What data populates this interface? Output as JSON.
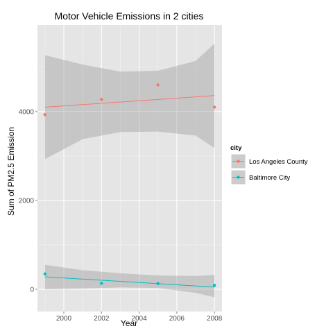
{
  "chart_data": {
    "type": "scatter",
    "title": "Motor Vehicle Emissions in 2 cities",
    "xlabel": "Year",
    "ylabel": "Sum of PM2.5 Emission",
    "x_ticks": [
      2000,
      2002,
      2004,
      2006,
      2008
    ],
    "y_ticks": [
      0,
      2000,
      4000
    ],
    "x_tick_labels": [
      "2000",
      "2002",
      "2004",
      "2006",
      "2008"
    ],
    "y_tick_labels": [
      "0",
      "2000",
      "4000"
    ],
    "xlim": [
      1998.6,
      2008.4
    ],
    "ylim": [
      -500,
      5950
    ],
    "grid": true,
    "legend_position": "right",
    "legend_title": "city",
    "series": [
      {
        "name": "Los Angeles County",
        "color": "#F8766D",
        "x": [
          1999,
          2002,
          2005,
          2008
        ],
        "y": [
          3931,
          4274,
          4601,
          4101
        ],
        "fit_start": 4100,
        "fit_end": 4360,
        "band_upper": [
          5270,
          5060,
          4900,
          4920,
          5140,
          5530
        ],
        "band_lower": [
          2930,
          3380,
          3540,
          3550,
          3460,
          3180
        ]
      },
      {
        "name": "Baltimore City",
        "color": "#00BFC4",
        "x": [
          1999,
          2002,
          2005,
          2008
        ],
        "y": [
          347,
          134,
          130,
          88
        ],
        "fit_start": 280,
        "fit_end": 50,
        "band_upper": [
          550,
          430,
          360,
          310,
          300,
          320
        ],
        "band_lower": [
          0,
          20,
          40,
          30,
          -80,
          -180
        ]
      }
    ],
    "band_x": [
      1999,
      2001,
      2003,
      2005,
      2007,
      2008
    ]
  }
}
